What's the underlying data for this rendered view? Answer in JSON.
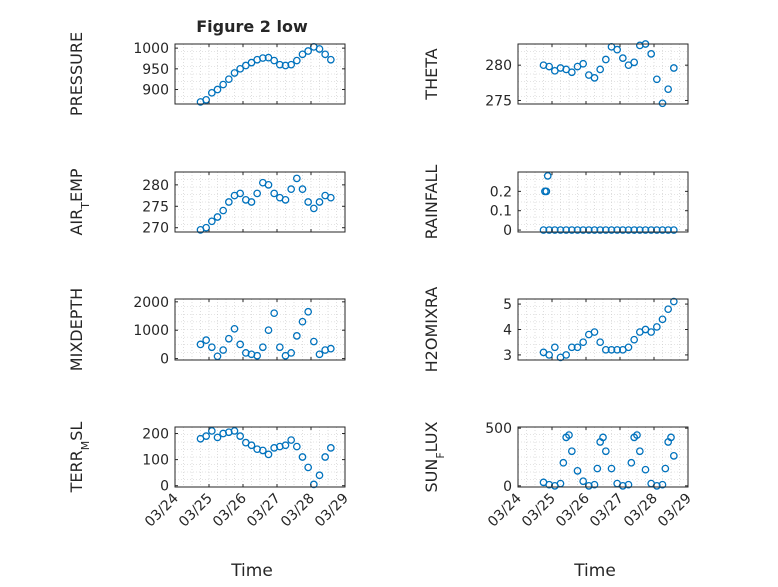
{
  "figure": {
    "title": "Figure 2 low",
    "xlabel": "Time"
  },
  "chart_data": [
    {
      "type": "scatter",
      "ylabel": "PRESSURE",
      "xlim": [
        "03/24",
        "03/29"
      ],
      "ylim": [
        865,
        1010
      ],
      "yticks": [
        900,
        950,
        1000
      ],
      "xticks": [
        "03/24",
        "03/25",
        "03/26",
        "03/27",
        "03/28",
        "03/29"
      ],
      "x": [
        "2022-03-24T18:00",
        "2022-03-24T22:00",
        "2022-03-25T02:00",
        "2022-03-25T06:00",
        "2022-03-25T10:00",
        "2022-03-25T14:00",
        "2022-03-25T18:00",
        "2022-03-25T22:00",
        "2022-03-26T02:00",
        "2022-03-26T06:00",
        "2022-03-26T10:00",
        "2022-03-26T14:00",
        "2022-03-26T18:00",
        "2022-03-26T22:00",
        "2022-03-27T02:00",
        "2022-03-27T06:00",
        "2022-03-27T10:00",
        "2022-03-27T14:00",
        "2022-03-27T18:00",
        "2022-03-27T22:00",
        "2022-03-28T02:00",
        "2022-03-28T06:00",
        "2022-03-28T10:00",
        "2022-03-28T14:00"
      ],
      "y": [
        870,
        875,
        892,
        900,
        912,
        925,
        940,
        950,
        958,
        965,
        972,
        976,
        977,
        970,
        960,
        958,
        960,
        970,
        985,
        993,
        1003,
        998,
        985,
        972
      ]
    },
    {
      "type": "scatter",
      "ylabel": "THETA",
      "xlim": [
        "03/24",
        "03/29"
      ],
      "ylim": [
        274.5,
        283
      ],
      "yticks": [
        275,
        280
      ],
      "xticks": [
        "03/24",
        "03/25",
        "03/26",
        "03/27",
        "03/28",
        "03/29"
      ],
      "x": [
        "2022-03-24T18:00",
        "2022-03-24T22:00",
        "2022-03-25T02:00",
        "2022-03-25T06:00",
        "2022-03-25T10:00",
        "2022-03-25T14:00",
        "2022-03-25T18:00",
        "2022-03-25T22:00",
        "2022-03-26T02:00",
        "2022-03-26T06:00",
        "2022-03-26T10:00",
        "2022-03-26T14:00",
        "2022-03-26T18:00",
        "2022-03-26T22:00",
        "2022-03-27T02:00",
        "2022-03-27T06:00",
        "2022-03-27T10:00",
        "2022-03-27T14:00",
        "2022-03-27T18:00",
        "2022-03-27T22:00",
        "2022-03-28T02:00",
        "2022-03-28T06:00",
        "2022-03-28T10:00",
        "2022-03-28T14:00"
      ],
      "y": [
        280.0,
        279.8,
        279.2,
        279.6,
        279.4,
        279.0,
        279.8,
        280.2,
        278.6,
        278.2,
        279.4,
        280.8,
        282.6,
        282.2,
        281.0,
        280.0,
        280.4,
        282.8,
        283.0,
        281.6,
        278.0,
        274.6,
        276.6,
        279.6
      ]
    },
    {
      "type": "scatter",
      "ylabel": "AIR_TEMP",
      "xlim": [
        "03/24",
        "03/29"
      ],
      "ylim": [
        269,
        283
      ],
      "yticks": [
        270,
        275,
        280
      ],
      "xticks": [
        "03/24",
        "03/25",
        "03/26",
        "03/27",
        "03/28",
        "03/29"
      ],
      "x": [
        "2022-03-24T18:00",
        "2022-03-24T22:00",
        "2022-03-25T02:00",
        "2022-03-25T06:00",
        "2022-03-25T10:00",
        "2022-03-25T14:00",
        "2022-03-25T18:00",
        "2022-03-25T22:00",
        "2022-03-26T02:00",
        "2022-03-26T06:00",
        "2022-03-26T10:00",
        "2022-03-26T14:00",
        "2022-03-26T18:00",
        "2022-03-26T22:00",
        "2022-03-27T02:00",
        "2022-03-27T06:00",
        "2022-03-27T10:00",
        "2022-03-27T14:00",
        "2022-03-27T18:00",
        "2022-03-27T22:00",
        "2022-03-28T02:00",
        "2022-03-28T06:00",
        "2022-03-28T10:00",
        "2022-03-28T14:00"
      ],
      "y": [
        269.5,
        270.0,
        271.5,
        272.5,
        274.0,
        276.0,
        277.5,
        278.0,
        276.5,
        276.0,
        278.0,
        280.5,
        280.0,
        278.0,
        277.0,
        276.5,
        279.0,
        281.5,
        279.0,
        276.0,
        274.5,
        276.0,
        277.5,
        277.0
      ]
    },
    {
      "type": "scatter",
      "ylabel": "RAINFALL",
      "xlim": [
        "03/24",
        "03/29"
      ],
      "ylim": [
        -0.01,
        0.3
      ],
      "yticks": [
        0,
        0.1,
        0.2
      ],
      "xticks": [
        "03/24",
        "03/25",
        "03/26",
        "03/27",
        "03/28",
        "03/29"
      ],
      "x": [
        "2022-03-24T18:00",
        "2022-03-24T19:00",
        "2022-03-24T20:00",
        "2022-03-24T21:00",
        "2022-03-24T22:00",
        "2022-03-25T02:00",
        "2022-03-25T06:00",
        "2022-03-25T10:00",
        "2022-03-25T14:00",
        "2022-03-25T18:00",
        "2022-03-25T22:00",
        "2022-03-26T02:00",
        "2022-03-26T06:00",
        "2022-03-26T10:00",
        "2022-03-26T14:00",
        "2022-03-26T18:00",
        "2022-03-26T22:00",
        "2022-03-27T02:00",
        "2022-03-27T06:00",
        "2022-03-27T10:00",
        "2022-03-27T14:00",
        "2022-03-27T18:00",
        "2022-03-27T22:00",
        "2022-03-28T02:00",
        "2022-03-28T06:00",
        "2022-03-28T10:00",
        "2022-03-28T14:00"
      ],
      "y": [
        0,
        0.2,
        0.2,
        0.28,
        0,
        0,
        0,
        0,
        0,
        0,
        0,
        0,
        0,
        0,
        0,
        0,
        0,
        0,
        0,
        0,
        0,
        0,
        0,
        0,
        0,
        0,
        0
      ]
    },
    {
      "type": "scatter",
      "ylabel": "MIXDEPTH",
      "xlim": [
        "03/24",
        "03/29"
      ],
      "ylim": [
        -50,
        2100
      ],
      "yticks": [
        0,
        1000,
        2000
      ],
      "xticks": [
        "03/24",
        "03/25",
        "03/26",
        "03/27",
        "03/28",
        "03/29"
      ],
      "x": [
        "2022-03-24T18:00",
        "2022-03-24T22:00",
        "2022-03-25T02:00",
        "2022-03-25T06:00",
        "2022-03-25T10:00",
        "2022-03-25T14:00",
        "2022-03-25T18:00",
        "2022-03-25T22:00",
        "2022-03-26T02:00",
        "2022-03-26T06:00",
        "2022-03-26T10:00",
        "2022-03-26T14:00",
        "2022-03-26T18:00",
        "2022-03-26T22:00",
        "2022-03-27T02:00",
        "2022-03-27T06:00",
        "2022-03-27T10:00",
        "2022-03-27T14:00",
        "2022-03-27T18:00",
        "2022-03-27T22:00",
        "2022-03-28T02:00",
        "2022-03-28T06:00",
        "2022-03-28T10:00",
        "2022-03-28T14:00"
      ],
      "y": [
        500,
        650,
        400,
        80,
        300,
        700,
        1050,
        500,
        200,
        150,
        100,
        400,
        1000,
        1600,
        400,
        100,
        200,
        800,
        1300,
        1650,
        600,
        150,
        300,
        350
      ]
    },
    {
      "type": "scatter",
      "ylabel": "H2OMIXRA",
      "xlim": [
        "03/24",
        "03/29"
      ],
      "ylim": [
        2.8,
        5.2
      ],
      "yticks": [
        3,
        4,
        5
      ],
      "xticks": [
        "03/24",
        "03/25",
        "03/26",
        "03/27",
        "03/28",
        "03/29"
      ],
      "x": [
        "2022-03-24T18:00",
        "2022-03-24T22:00",
        "2022-03-25T02:00",
        "2022-03-25T06:00",
        "2022-03-25T10:00",
        "2022-03-25T14:00",
        "2022-03-25T18:00",
        "2022-03-25T22:00",
        "2022-03-26T02:00",
        "2022-03-26T06:00",
        "2022-03-26T10:00",
        "2022-03-26T14:00",
        "2022-03-26T18:00",
        "2022-03-26T22:00",
        "2022-03-27T02:00",
        "2022-03-27T06:00",
        "2022-03-27T10:00",
        "2022-03-27T14:00",
        "2022-03-27T18:00",
        "2022-03-27T22:00",
        "2022-03-28T02:00",
        "2022-03-28T06:00",
        "2022-03-28T10:00",
        "2022-03-28T14:00"
      ],
      "y": [
        3.1,
        3.0,
        3.3,
        2.9,
        3.0,
        3.3,
        3.3,
        3.5,
        3.8,
        3.9,
        3.5,
        3.2,
        3.2,
        3.2,
        3.2,
        3.3,
        3.6,
        3.9,
        4.0,
        3.9,
        4.1,
        4.4,
        4.8,
        5.1
      ]
    },
    {
      "type": "scatter",
      "ylabel": "TERR_MSL",
      "xlim": [
        "03/24",
        "03/29"
      ],
      "ylim": [
        -5,
        225
      ],
      "yticks": [
        0,
        100,
        200
      ],
      "xticks": [
        "03/24",
        "03/25",
        "03/26",
        "03/27",
        "03/28",
        "03/29"
      ],
      "x": [
        "2022-03-24T18:00",
        "2022-03-24T22:00",
        "2022-03-25T02:00",
        "2022-03-25T06:00",
        "2022-03-25T10:00",
        "2022-03-25T14:00",
        "2022-03-25T18:00",
        "2022-03-25T22:00",
        "2022-03-26T02:00",
        "2022-03-26T06:00",
        "2022-03-26T10:00",
        "2022-03-26T14:00",
        "2022-03-26T18:00",
        "2022-03-26T22:00",
        "2022-03-27T02:00",
        "2022-03-27T06:00",
        "2022-03-27T10:00",
        "2022-03-27T14:00",
        "2022-03-27T18:00",
        "2022-03-27T22:00",
        "2022-03-28T02:00",
        "2022-03-28T06:00",
        "2022-03-28T10:00",
        "2022-03-28T14:00"
      ],
      "y": [
        180,
        190,
        210,
        185,
        200,
        205,
        210,
        190,
        165,
        155,
        140,
        135,
        120,
        145,
        150,
        155,
        175,
        150,
        110,
        70,
        5,
        40,
        110,
        145
      ]
    },
    {
      "type": "scatter",
      "ylabel": "SUN_FLUX",
      "xlim": [
        "03/24",
        "03/29"
      ],
      "ylim": [
        -10,
        510
      ],
      "yticks": [
        0,
        500
      ],
      "xticks": [
        "03/24",
        "03/25",
        "03/26",
        "03/27",
        "03/28",
        "03/29"
      ],
      "x": [
        "2022-03-24T18:00",
        "2022-03-24T22:00",
        "2022-03-25T02:00",
        "2022-03-25T06:00",
        "2022-03-25T08:00",
        "2022-03-25T10:00",
        "2022-03-25T12:00",
        "2022-03-25T14:00",
        "2022-03-25T18:00",
        "2022-03-25T22:00",
        "2022-03-26T02:00",
        "2022-03-26T06:00",
        "2022-03-26T08:00",
        "2022-03-26T10:00",
        "2022-03-26T12:00",
        "2022-03-26T14:00",
        "2022-03-26T18:00",
        "2022-03-26T22:00",
        "2022-03-27T02:00",
        "2022-03-27T06:00",
        "2022-03-27T08:00",
        "2022-03-27T10:00",
        "2022-03-27T12:00",
        "2022-03-27T14:00",
        "2022-03-27T18:00",
        "2022-03-27T22:00",
        "2022-03-28T02:00",
        "2022-03-28T06:00",
        "2022-03-28T08:00",
        "2022-03-28T10:00",
        "2022-03-28T12:00",
        "2022-03-28T14:00"
      ],
      "y": [
        30,
        10,
        0,
        20,
        200,
        420,
        440,
        300,
        130,
        40,
        0,
        10,
        150,
        380,
        420,
        300,
        150,
        20,
        0,
        10,
        200,
        420,
        440,
        300,
        140,
        20,
        0,
        10,
        150,
        380,
        420,
        260
      ]
    }
  ]
}
